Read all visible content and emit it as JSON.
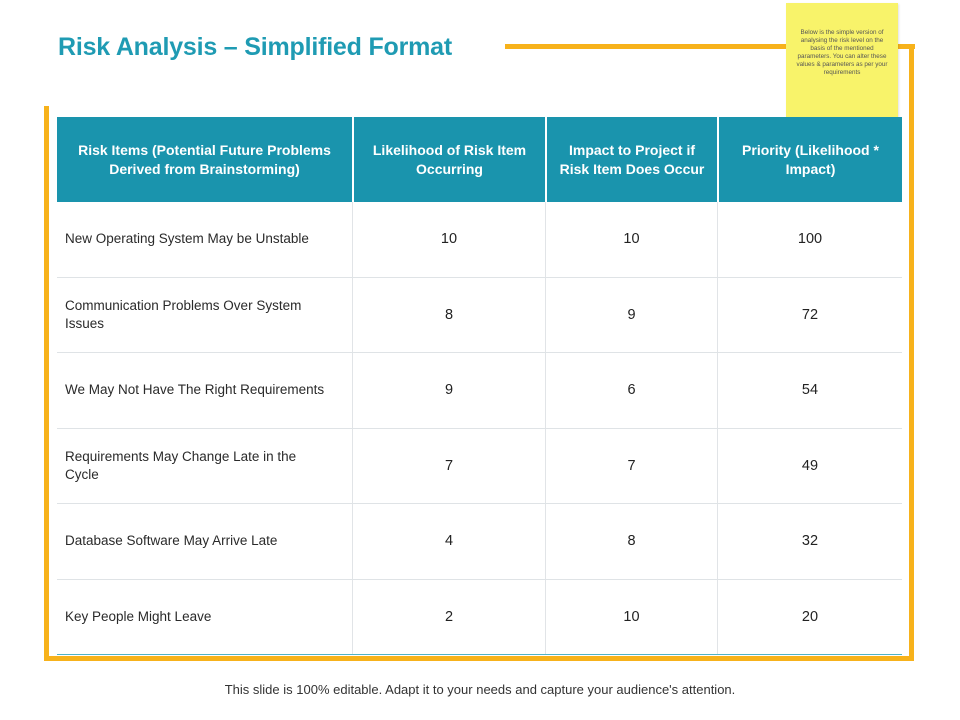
{
  "title": "Risk Analysis – Simplified Format",
  "note": "Below is the simple version of analysing the risk level on the basis of the mentioned parameters. You can alter these values & parameters as per your requirements",
  "table": {
    "headers": [
      "Risk Items (Potential Future Problems Derived from Brainstorming)",
      "Likelihood of Risk Item Occurring",
      "Impact to Project if Risk Item Does Occur",
      "Priority (Likelihood * Impact)"
    ],
    "rows": [
      {
        "item": "New Operating System May be Unstable",
        "likelihood": "10",
        "impact": "10",
        "priority": "100"
      },
      {
        "item": "Communication Problems Over System Issues",
        "likelihood": "8",
        "impact": "9",
        "priority": "72"
      },
      {
        "item": "We May Not Have The Right Requirements",
        "likelihood": "9",
        "impact": "6",
        "priority": "54"
      },
      {
        "item": "Requirements May Change Late in the Cycle",
        "likelihood": "7",
        "impact": "7",
        "priority": "49"
      },
      {
        "item": "Database Software May Arrive Late",
        "likelihood": "4",
        "impact": "8",
        "priority": "32"
      },
      {
        "item": "Key People Might Leave",
        "likelihood": "2",
        "impact": "10",
        "priority": "20"
      }
    ]
  },
  "footer": "This slide is 100% editable. Adapt it to your needs and capture your audience's attention.",
  "colors": {
    "accent": "#1a94ad",
    "frame": "#f7b21b",
    "note": "#f8f36a"
  }
}
